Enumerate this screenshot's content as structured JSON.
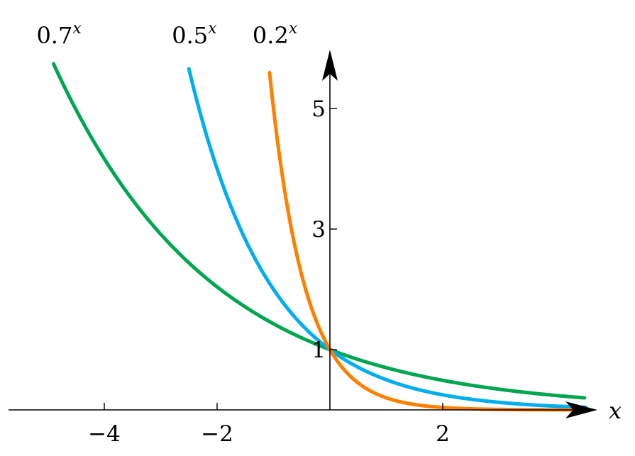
{
  "chart_data": {
    "type": "line",
    "title": "",
    "xlabel": "x",
    "ylabel": "",
    "xlim": [
      -5.7,
      3.5
    ],
    "ylim": [
      -0.1,
      6.0
    ],
    "grid": false,
    "legend": "none",
    "x_ticks": [
      {
        "value": -4,
        "label": "−4"
      },
      {
        "value": -2,
        "label": "−2"
      },
      {
        "value": 2,
        "label": "2"
      }
    ],
    "y_ticks": [
      {
        "value": 1,
        "label": "1"
      },
      {
        "value": 3,
        "label": "3"
      },
      {
        "value": 5,
        "label": "5"
      }
    ],
    "series": [
      {
        "name": "0.7",
        "label_base": "0.7",
        "label_exponent": "x",
        "base": 0.7,
        "color": "#00a650",
        "x_range": [
          -4.9,
          4.6
        ]
      },
      {
        "name": "0.5",
        "label_base": "0.5",
        "label_exponent": "x",
        "base": 0.5,
        "color": "#00aeef",
        "x_range": [
          -2.5,
          4.6
        ]
      },
      {
        "name": "0.2",
        "label_base": "0.2",
        "label_exponent": "x",
        "base": 0.2,
        "color": "#ff7f00",
        "x_range": [
          -1.07,
          4.6
        ]
      }
    ]
  }
}
